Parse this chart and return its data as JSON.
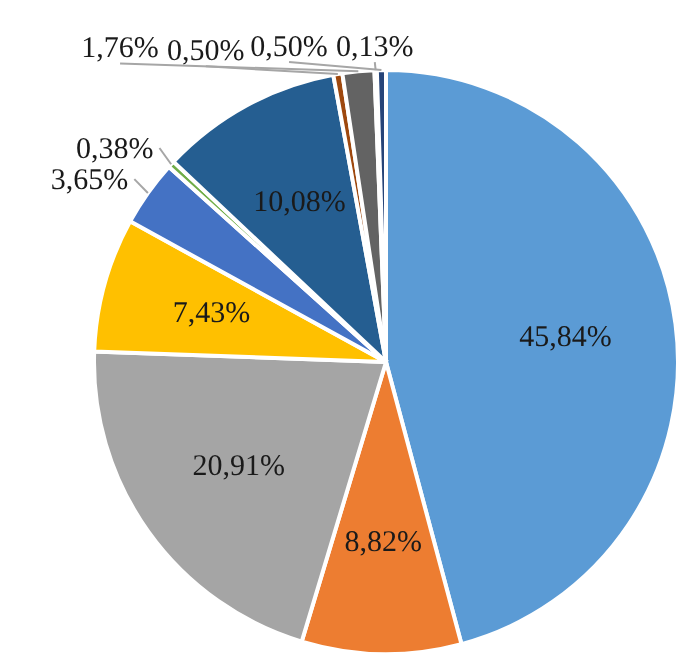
{
  "chart_data": {
    "type": "pie",
    "categories": [
      null,
      null,
      null,
      null,
      null,
      null,
      null,
      null,
      null,
      null,
      null
    ],
    "values": [
      45.84,
      8.82,
      20.91,
      7.43,
      3.65,
      0.38,
      10.08,
      0.5,
      1.76,
      0.13,
      0.5
    ],
    "colors": [
      "#5b9bd5",
      "#ed7d31",
      "#a5a5a5",
      "#ffc000",
      "#4472c4",
      "#70ad47",
      "#255e91",
      "#9e480e",
      "#636363",
      "#997300",
      "#264478"
    ],
    "value_labels": [
      "45,84%",
      "8,82%",
      "20,91%",
      "7,43%",
      "3,65%",
      "0,38%",
      "10,08%",
      "0,50%",
      "1,76%",
      "0,13%",
      "0,50%"
    ],
    "legend": false
  }
}
